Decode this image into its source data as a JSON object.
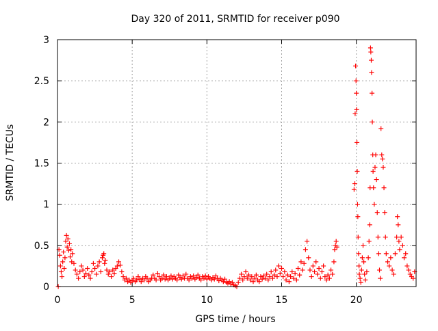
{
  "chart_data": {
    "type": "scatter",
    "title": "Day 320 of 2011, SRMTID for receiver p090",
    "xlabel": "GPS time / hours",
    "ylabel": "SRMTID / TECUs",
    "xlim": [
      0,
      24
    ],
    "ylim": [
      0,
      3
    ],
    "grid": true,
    "marker": "+",
    "color": "#ff0000",
    "x_ticks": [
      0,
      5,
      10,
      15,
      20
    ],
    "x_tick_labels": [
      "0",
      "5",
      "10",
      "15",
      "20"
    ],
    "y_ticks": [
      0,
      0.5,
      1,
      1.5,
      2,
      2.5,
      3
    ],
    "y_tick_labels": [
      "0",
      "0.5",
      "1",
      "1.5",
      "2",
      "2.5",
      "3"
    ],
    "series": [
      {
        "name": "SRMTID",
        "points": [
          [
            0.05,
            0.0
          ],
          [
            0.1,
            0.45
          ],
          [
            0.15,
            0.38
          ],
          [
            0.2,
            0.25
          ],
          [
            0.25,
            0.18
          ],
          [
            0.3,
            0.12
          ],
          [
            0.35,
            0.3
          ],
          [
            0.4,
            0.42
          ],
          [
            0.45,
            0.22
          ],
          [
            0.5,
            0.35
          ],
          [
            0.55,
            0.55
          ],
          [
            0.6,
            0.62
          ],
          [
            0.65,
            0.48
          ],
          [
            0.7,
            0.58
          ],
          [
            0.75,
            0.44
          ],
          [
            0.8,
            0.52
          ],
          [
            0.85,
            0.36
          ],
          [
            0.9,
            0.45
          ],
          [
            0.95,
            0.3
          ],
          [
            1.0,
            0.4
          ],
          [
            1.1,
            0.28
          ],
          [
            1.2,
            0.2
          ],
          [
            1.3,
            0.15
          ],
          [
            1.4,
            0.1
          ],
          [
            1.5,
            0.18
          ],
          [
            1.6,
            0.25
          ],
          [
            1.7,
            0.2
          ],
          [
            1.8,
            0.12
          ],
          [
            1.9,
            0.16
          ],
          [
            2.0,
            0.22
          ],
          [
            2.1,
            0.14
          ],
          [
            2.2,
            0.1
          ],
          [
            2.3,
            0.18
          ],
          [
            2.4,
            0.28
          ],
          [
            2.5,
            0.22
          ],
          [
            2.6,
            0.15
          ],
          [
            2.7,
            0.25
          ],
          [
            2.8,
            0.3
          ],
          [
            2.9,
            0.18
          ],
          [
            3.0,
            0.35
          ],
          [
            3.05,
            0.38
          ],
          [
            3.1,
            0.4
          ],
          [
            3.15,
            0.28
          ],
          [
            3.2,
            0.32
          ],
          [
            3.3,
            0.2
          ],
          [
            3.4,
            0.15
          ],
          [
            3.5,
            0.18
          ],
          [
            3.6,
            0.12
          ],
          [
            3.7,
            0.2
          ],
          [
            3.8,
            0.16
          ],
          [
            3.9,
            0.22
          ],
          [
            4.0,
            0.25
          ],
          [
            4.1,
            0.3
          ],
          [
            4.2,
            0.26
          ],
          [
            4.3,
            0.18
          ],
          [
            4.4,
            0.12
          ],
          [
            4.5,
            0.08
          ],
          [
            4.6,
            0.1
          ],
          [
            4.7,
            0.06
          ],
          [
            4.8,
            0.08
          ],
          [
            4.9,
            0.05
          ],
          [
            5.0,
            0.07
          ],
          [
            5.1,
            0.1
          ],
          [
            5.2,
            0.06
          ],
          [
            5.3,
            0.08
          ],
          [
            5.4,
            0.12
          ],
          [
            5.5,
            0.09
          ],
          [
            5.6,
            0.06
          ],
          [
            5.7,
            0.1
          ],
          [
            5.8,
            0.08
          ],
          [
            5.9,
            0.12
          ],
          [
            6.0,
            0.1
          ],
          [
            6.1,
            0.06
          ],
          [
            6.2,
            0.08
          ],
          [
            6.3,
            0.1
          ],
          [
            6.4,
            0.14
          ],
          [
            6.5,
            0.1
          ],
          [
            6.6,
            0.08
          ],
          [
            6.7,
            0.16
          ],
          [
            6.8,
            0.12
          ],
          [
            6.9,
            0.08
          ],
          [
            7.0,
            0.1
          ],
          [
            7.1,
            0.14
          ],
          [
            7.2,
            0.09
          ],
          [
            7.3,
            0.12
          ],
          [
            7.4,
            0.08
          ],
          [
            7.5,
            0.1
          ],
          [
            7.6,
            0.13
          ],
          [
            7.7,
            0.09
          ],
          [
            7.8,
            0.12
          ],
          [
            7.9,
            0.1
          ],
          [
            8.0,
            0.08
          ],
          [
            8.1,
            0.14
          ],
          [
            8.2,
            0.11
          ],
          [
            8.3,
            0.09
          ],
          [
            8.4,
            0.13
          ],
          [
            8.5,
            0.1
          ],
          [
            8.6,
            0.15
          ],
          [
            8.7,
            0.1
          ],
          [
            8.8,
            0.08
          ],
          [
            8.9,
            0.12
          ],
          [
            9.0,
            0.1
          ],
          [
            9.1,
            0.13
          ],
          [
            9.2,
            0.09
          ],
          [
            9.3,
            0.11
          ],
          [
            9.4,
            0.14
          ],
          [
            9.5,
            0.1
          ],
          [
            9.6,
            0.08
          ],
          [
            9.7,
            0.12
          ],
          [
            9.8,
            0.1
          ],
          [
            9.9,
            0.13
          ],
          [
            10.0,
            0.09
          ],
          [
            10.1,
            0.12
          ],
          [
            10.2,
            0.1
          ],
          [
            10.3,
            0.08
          ],
          [
            10.4,
            0.11
          ],
          [
            10.5,
            0.09
          ],
          [
            10.6,
            0.13
          ],
          [
            10.7,
            0.1
          ],
          [
            10.8,
            0.07
          ],
          [
            10.9,
            0.1
          ],
          [
            11.0,
            0.08
          ],
          [
            11.1,
            0.06
          ],
          [
            11.2,
            0.09
          ],
          [
            11.3,
            0.05
          ],
          [
            11.4,
            0.04
          ],
          [
            11.5,
            0.06
          ],
          [
            11.6,
            0.03
          ],
          [
            11.7,
            0.05
          ],
          [
            11.8,
            0.02
          ],
          [
            11.9,
            0.01
          ],
          [
            12.0,
            0.0
          ],
          [
            12.1,
            0.05
          ],
          [
            12.2,
            0.1
          ],
          [
            12.3,
            0.15
          ],
          [
            12.4,
            0.08
          ],
          [
            12.5,
            0.12
          ],
          [
            12.6,
            0.18
          ],
          [
            12.7,
            0.1
          ],
          [
            12.8,
            0.14
          ],
          [
            12.9,
            0.08
          ],
          [
            13.0,
            0.12
          ],
          [
            13.1,
            0.06
          ],
          [
            13.2,
            0.1
          ],
          [
            13.3,
            0.14
          ],
          [
            13.4,
            0.08
          ],
          [
            13.5,
            0.06
          ],
          [
            13.6,
            0.12
          ],
          [
            13.7,
            0.09
          ],
          [
            13.8,
            0.13
          ],
          [
            13.9,
            0.1
          ],
          [
            14.0,
            0.15
          ],
          [
            14.1,
            0.08
          ],
          [
            14.2,
            0.12
          ],
          [
            14.3,
            0.18
          ],
          [
            14.4,
            0.1
          ],
          [
            14.5,
            0.14
          ],
          [
            14.6,
            0.2
          ],
          [
            14.7,
            0.12
          ],
          [
            14.8,
            0.25
          ],
          [
            14.9,
            0.16
          ],
          [
            15.0,
            0.22
          ],
          [
            15.1,
            0.12
          ],
          [
            15.2,
            0.18
          ],
          [
            15.3,
            0.08
          ],
          [
            15.4,
            0.14
          ],
          [
            15.5,
            0.06
          ],
          [
            15.6,
            0.12
          ],
          [
            15.7,
            0.18
          ],
          [
            15.8,
            0.1
          ],
          [
            15.9,
            0.16
          ],
          [
            16.0,
            0.08
          ],
          [
            16.1,
            0.22
          ],
          [
            16.2,
            0.14
          ],
          [
            16.3,
            0.3
          ],
          [
            16.4,
            0.2
          ],
          [
            16.5,
            0.28
          ],
          [
            16.6,
            0.45
          ],
          [
            16.7,
            0.55
          ],
          [
            16.8,
            0.35
          ],
          [
            16.9,
            0.2
          ],
          [
            17.0,
            0.12
          ],
          [
            17.1,
            0.25
          ],
          [
            17.2,
            0.18
          ],
          [
            17.3,
            0.3
          ],
          [
            17.4,
            0.15
          ],
          [
            17.5,
            0.22
          ],
          [
            17.6,
            0.1
          ],
          [
            17.7,
            0.18
          ],
          [
            17.8,
            0.25
          ],
          [
            17.9,
            0.12
          ],
          [
            18.0,
            0.08
          ],
          [
            18.1,
            0.14
          ],
          [
            18.2,
            0.1
          ],
          [
            18.3,
            0.2
          ],
          [
            18.4,
            0.15
          ],
          [
            18.5,
            0.3
          ],
          [
            18.55,
            0.45
          ],
          [
            18.6,
            0.5
          ],
          [
            18.65,
            0.55
          ],
          [
            18.7,
            0.48
          ],
          [
            19.85,
            1.18
          ],
          [
            19.9,
            1.25
          ],
          [
            19.92,
            2.1
          ],
          [
            19.95,
            2.68
          ],
          [
            19.98,
            2.5
          ],
          [
            20.0,
            2.35
          ],
          [
            20.02,
            2.15
          ],
          [
            20.04,
            1.75
          ],
          [
            20.06,
            1.4
          ],
          [
            20.08,
            1.0
          ],
          [
            20.1,
            0.85
          ],
          [
            20.12,
            0.6
          ],
          [
            20.15,
            0.4
          ],
          [
            20.18,
            0.25
          ],
          [
            20.2,
            0.15
          ],
          [
            20.25,
            0.1
          ],
          [
            20.3,
            0.05
          ],
          [
            20.35,
            0.2
          ],
          [
            20.4,
            0.35
          ],
          [
            20.45,
            0.5
          ],
          [
            20.5,
            0.3
          ],
          [
            20.55,
            0.15
          ],
          [
            20.6,
            0.08
          ],
          [
            20.7,
            0.18
          ],
          [
            20.8,
            0.35
          ],
          [
            20.85,
            0.55
          ],
          [
            20.9,
            0.75
          ],
          [
            20.92,
            1.2
          ],
          [
            20.95,
            2.9
          ],
          [
            20.97,
            2.85
          ],
          [
            21.0,
            2.75
          ],
          [
            21.02,
            2.6
          ],
          [
            21.05,
            2.35
          ],
          [
            21.07,
            2.0
          ],
          [
            21.1,
            1.6
          ],
          [
            21.12,
            1.4
          ],
          [
            21.15,
            1.2
          ],
          [
            21.2,
            1.0
          ],
          [
            21.25,
            1.45
          ],
          [
            21.3,
            1.6
          ],
          [
            21.35,
            1.3
          ],
          [
            21.4,
            0.9
          ],
          [
            21.45,
            0.6
          ],
          [
            21.5,
            0.4
          ],
          [
            21.55,
            0.2
          ],
          [
            21.6,
            0.1
          ],
          [
            21.65,
            1.92
          ],
          [
            21.7,
            1.6
          ],
          [
            21.75,
            1.55
          ],
          [
            21.8,
            1.45
          ],
          [
            21.85,
            1.2
          ],
          [
            21.9,
            0.9
          ],
          [
            21.95,
            0.6
          ],
          [
            22.0,
            0.4
          ],
          [
            22.1,
            0.3
          ],
          [
            22.2,
            0.25
          ],
          [
            22.3,
            0.35
          ],
          [
            22.4,
            0.2
          ],
          [
            22.5,
            0.15
          ],
          [
            22.6,
            0.4
          ],
          [
            22.7,
            0.6
          ],
          [
            22.75,
            0.85
          ],
          [
            22.8,
            0.75
          ],
          [
            22.85,
            0.55
          ],
          [
            22.9,
            0.45
          ],
          [
            23.0,
            0.6
          ],
          [
            23.1,
            0.5
          ],
          [
            23.2,
            0.35
          ],
          [
            23.3,
            0.4
          ],
          [
            23.4,
            0.25
          ],
          [
            23.5,
            0.2
          ],
          [
            23.6,
            0.15
          ],
          [
            23.7,
            0.12
          ],
          [
            23.8,
            0.1
          ],
          [
            23.9,
            0.18
          ]
        ]
      }
    ]
  }
}
